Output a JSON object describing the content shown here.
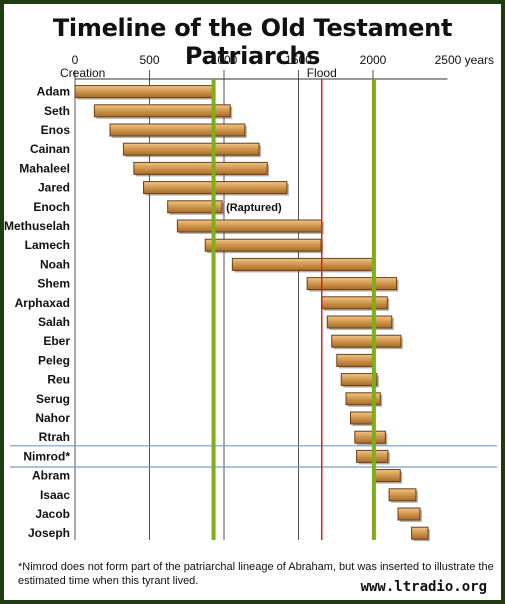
{
  "title": "Timeline of the Old Testament Patriarchs",
  "footnote": "*Nimrod does not form part of the patriarchal lineage of Abraham, but was inserted to illustrate the estimated time when this tyrant lived.",
  "website": "www.ltradio.org",
  "colors": {
    "bar": "#d29a4f",
    "bar_border": "#6b3f12",
    "gridline": "#555555",
    "flood_line": "#e02020",
    "green_line": "#7fae1a",
    "separator": "#7a9cc6",
    "background_frame": "#1e3b12"
  },
  "chart_data": {
    "type": "bar",
    "orientation": "horizontal-range",
    "title": "Timeline of the Old Testament Patriarchs",
    "xlim": [
      0,
      2500
    ],
    "x_ticks": [
      0,
      500,
      1000,
      1500,
      2000
    ],
    "x_tick_labels": [
      "0",
      "500",
      "1000",
      "1500",
      "2000"
    ],
    "x_unit_label": "2500 years",
    "x_markers": [
      {
        "x": 0,
        "label": "Creation"
      },
      {
        "x": 1656,
        "label": "Flood"
      }
    ],
    "vertical_lines": [
      {
        "x": 930,
        "color": "green"
      },
      {
        "x": 2006,
        "color": "green"
      },
      {
        "x": 1656,
        "color": "red"
      }
    ],
    "grid": true,
    "categories": [
      "Adam",
      "Seth",
      "Enos",
      "Cainan",
      "Mahaleel",
      "Jared",
      "Enoch",
      "Methuselah",
      "Lamech",
      "Noah",
      "Shem",
      "Arphaxad",
      "Salah",
      "Eber",
      "Peleg",
      "Reu",
      "Serug",
      "Nahor",
      "Rtrah",
      "Nimrod*",
      "Abram",
      "Isaac",
      "Jacob",
      "Joseph"
    ],
    "series": [
      {
        "start": [
          0,
          130,
          235,
          325,
          395,
          460,
          622,
          687,
          874,
          1056,
          1558,
          1658,
          1693,
          1723,
          1757,
          1787,
          1819,
          1849,
          1878,
          1890,
          2008,
          2108,
          2168,
          2259
        ],
        "end": [
          930,
          1042,
          1140,
          1235,
          1290,
          1422,
          987,
          1656,
          1651,
          2006,
          2158,
          2096,
          2126,
          2187,
          1996,
          2026,
          2049,
          1997,
          2083,
          2100,
          2183,
          2288,
          2315,
          2369
        ]
      }
    ],
    "annotations": [
      {
        "category": "Enoch",
        "text": "(Raptured)"
      }
    ],
    "separators_around": [
      "Nimrod*"
    ]
  }
}
